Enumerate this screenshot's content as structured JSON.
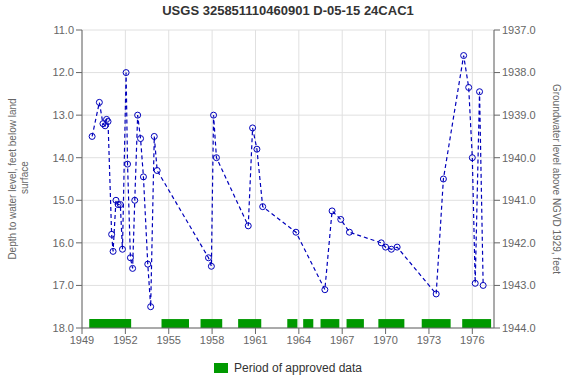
{
  "chart_data": {
    "type": "line",
    "title": "USGS 325851110460901 D-05-15 24CAC1",
    "ylabel": "Depth to water level, feet below land\n surface",
    "y2label": "Groundwater level above NGVD 1929, feet",
    "x": [
      1949.7,
      1950.2,
      1950.45,
      1950.6,
      1950.7,
      1950.8,
      1951.05,
      1951.15,
      1951.35,
      1951.5,
      1951.65,
      1951.8,
      1952.05,
      1952.15,
      1952.35,
      1952.5,
      1952.65,
      1952.85,
      1953.05,
      1953.25,
      1953.55,
      1953.75,
      1954.0,
      1954.2,
      1957.75,
      1957.95,
      1958.1,
      1958.3,
      1960.5,
      1960.8,
      1961.1,
      1961.5,
      1963.8,
      1965.8,
      1966.3,
      1966.9,
      1967.5,
      1969.7,
      1970.0,
      1970.4,
      1970.8,
      1973.5,
      1974.0,
      1975.4,
      1975.75,
      1976.0,
      1976.2,
      1976.5,
      1976.75
    ],
    "series": [
      {
        "color": "#0000bb",
        "marker": "circle",
        "line_style": "dashed",
        "values": [
          13.5,
          12.7,
          13.2,
          13.25,
          13.1,
          13.15,
          15.8,
          16.2,
          15.0,
          15.1,
          15.1,
          16.15,
          12.0,
          14.15,
          16.35,
          16.6,
          15.0,
          13.0,
          13.55,
          14.45,
          16.5,
          17.5,
          13.5,
          14.3,
          16.35,
          16.55,
          13.0,
          14.0,
          15.6,
          13.3,
          13.8,
          15.15,
          15.75,
          17.1,
          15.25,
          15.45,
          15.75,
          16.0,
          16.1,
          16.15,
          16.1,
          17.2,
          14.5,
          11.6,
          12.35,
          14.0,
          16.95,
          12.45,
          17.0
        ]
      }
    ],
    "xlim": [
      1949,
      1977.5
    ],
    "xticks": [
      1949,
      1952,
      1955,
      1958,
      1961,
      1964,
      1967,
      1970,
      1973,
      1976
    ],
    "ylim": [
      18.0,
      11.0
    ],
    "yticks": [
      {
        "value": 11.0,
        "label": "11.0"
      },
      {
        "value": 12.0,
        "label": "12.0"
      },
      {
        "value": 13.0,
        "label": "13.0"
      },
      {
        "value": 14.0,
        "label": "14.0"
      },
      {
        "value": 15.0,
        "label": "15.0"
      },
      {
        "value": 16.0,
        "label": "16.0"
      },
      {
        "value": 17.0,
        "label": "17.0"
      },
      {
        "value": 18.0,
        "label": "18.0"
      }
    ],
    "y2lim": [
      1944.0,
      1937.0
    ],
    "y2ticks": [
      {
        "value": 1944.0,
        "label": "1944.0"
      },
      {
        "value": 1943.0,
        "label": "1943.0"
      },
      {
        "value": 1942.0,
        "label": "1942.0"
      },
      {
        "value": 1941.0,
        "label": "1941.0"
      },
      {
        "value": 1940.0,
        "label": "1940.0"
      },
      {
        "value": 1939.0,
        "label": "1939.0"
      },
      {
        "value": 1938.0,
        "label": "1938.0"
      },
      {
        "value": 1937.0,
        "label": "1937.0"
      }
    ],
    "grid": true,
    "legend": "bottom",
    "approved_periods": {
      "name": "Period of approved data",
      "color": "#009900",
      "ranges": [
        [
          1949.5,
          1952.4
        ],
        [
          1954.5,
          1956.4
        ],
        [
          1957.2,
          1958.7
        ],
        [
          1959.8,
          1961.4
        ],
        [
          1963.2,
          1963.9
        ],
        [
          1964.3,
          1965.0
        ],
        [
          1965.5,
          1966.8
        ],
        [
          1967.3,
          1968.5
        ],
        [
          1969.5,
          1971.3
        ],
        [
          1972.5,
          1974.5
        ],
        [
          1975.3,
          1977.3
        ]
      ]
    }
  }
}
